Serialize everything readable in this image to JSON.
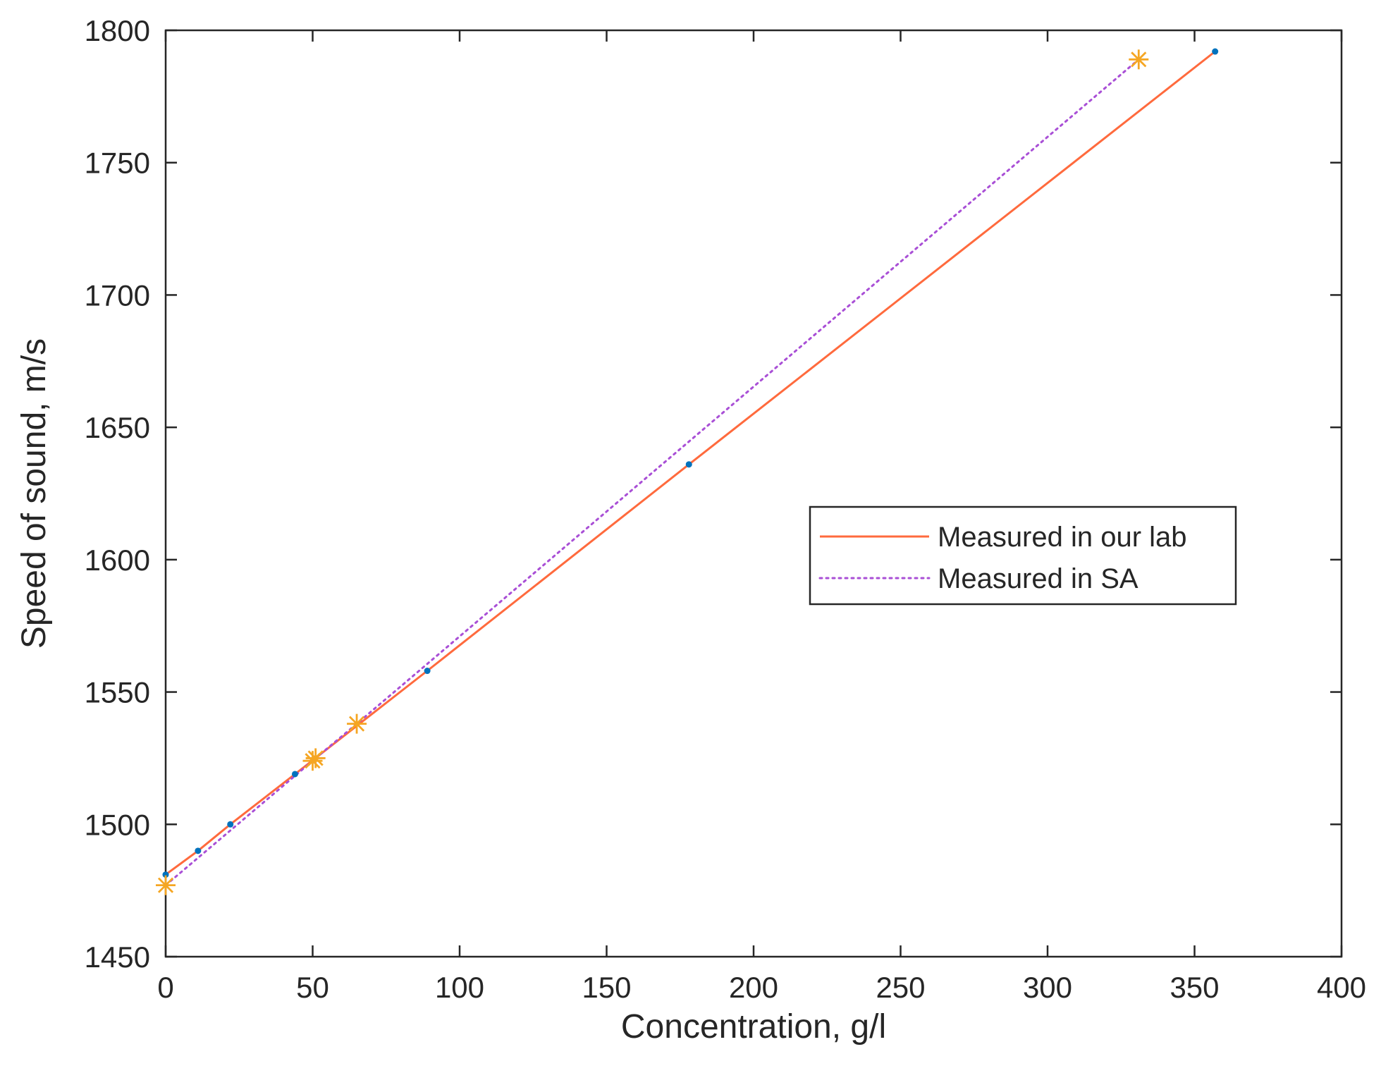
{
  "chart_data": {
    "type": "line",
    "xlabel": "Concentration, g/l",
    "ylabel": "Speed of sound, m/s",
    "xlim": [
      0,
      400
    ],
    "ylim": [
      1450,
      1800
    ],
    "x_ticks": [
      "0",
      "50",
      "100",
      "150",
      "200",
      "250",
      "300",
      "350",
      "400"
    ],
    "y_ticks": [
      "1450",
      "1500",
      "1550",
      "1600",
      "1650",
      "1700",
      "1750",
      "1800"
    ],
    "grid": false,
    "legend_position": "center-right",
    "series": [
      {
        "name": "Measured in our lab",
        "style": "solid",
        "color": "#FF6A3D",
        "marker": "dot",
        "marker_color": "#0072BD",
        "x": [
          0,
          11,
          22,
          44,
          89,
          178,
          357
        ],
        "y": [
          1481,
          1490,
          1500,
          1519,
          1558,
          1636,
          1792
        ]
      },
      {
        "name": "Measured in SA",
        "style": "dotted",
        "color": "#A94FD6",
        "marker": "star",
        "marker_color": "#F5A623",
        "x": [
          0,
          50,
          51,
          65,
          331
        ],
        "y": [
          1477,
          1524,
          1525,
          1538,
          1789
        ]
      }
    ]
  }
}
